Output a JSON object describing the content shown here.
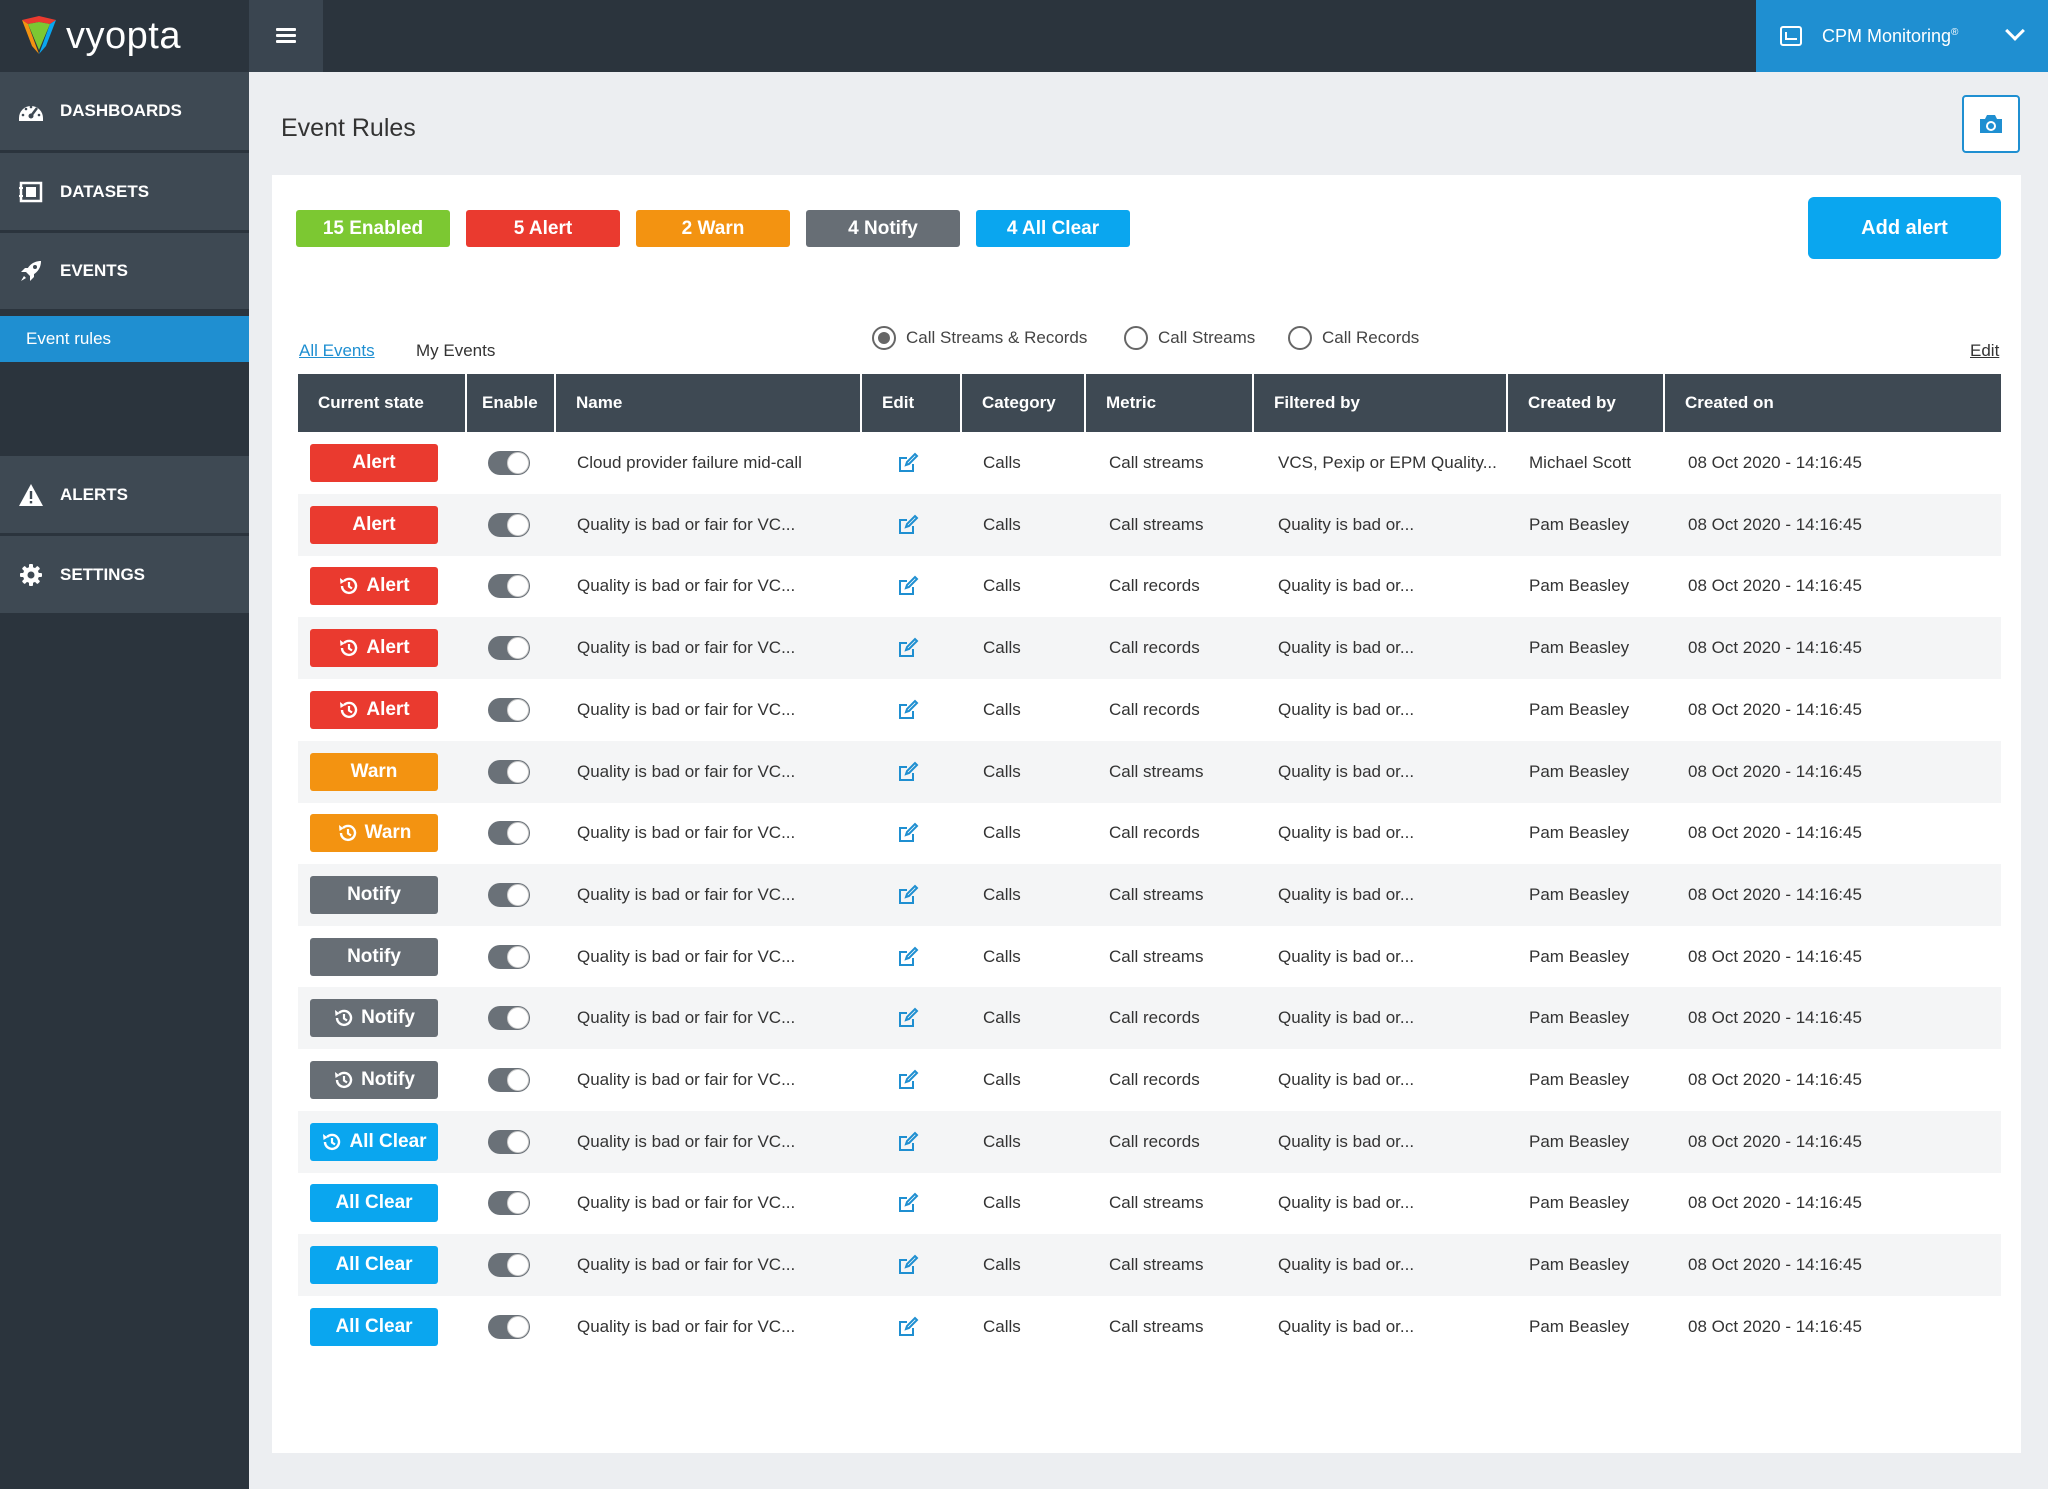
{
  "brand": {
    "name": "vyopta"
  },
  "header": {
    "product_label": "CPM Monitoring",
    "product_mark": "®"
  },
  "colors": {
    "alert": "#ea3a2f",
    "warn": "#f39311",
    "notify": "#676e75",
    "all_clear": "#0aa6ef",
    "enabled": "#7cc832",
    "accent": "#1f8fd1"
  },
  "sidebar": {
    "items": [
      {
        "label": "DASHBOARDS",
        "icon": "gauge-icon"
      },
      {
        "label": "DATASETS",
        "icon": "dataset-icon"
      },
      {
        "label": "EVENTS",
        "icon": "rocket-icon"
      },
      {
        "label": "ALERTS",
        "icon": "warning-icon"
      },
      {
        "label": "SETTINGS",
        "icon": "gear-icon"
      }
    ],
    "sub_item": "Event rules"
  },
  "page": {
    "title": "Event Rules"
  },
  "summary": {
    "enabled": "15 Enabled",
    "alert": "5 Alert",
    "warn": "2 Warn",
    "notify": "4 Notify",
    "all_clear": "4 All Clear"
  },
  "actions": {
    "add_alert": "Add alert",
    "edit": "Edit"
  },
  "tabs": {
    "all": "All Events",
    "my": "My Events"
  },
  "filters": {
    "options": [
      "Call Streams & Records",
      "Call Streams",
      "Call Records"
    ],
    "selected": "Call Streams & Records"
  },
  "table": {
    "headers": [
      "Current state",
      "Enable",
      "Name",
      "Edit",
      "Category",
      "Metric",
      "Filtered by",
      "Created by",
      "Created on"
    ],
    "rows": [
      {
        "state": "Alert",
        "history": false,
        "enabled": true,
        "name": "Cloud provider failure mid-call",
        "category": "Calls",
        "metric": "Call streams",
        "filtered_by": "VCS, Pexip or EPM Quality...",
        "created_by": "Michael Scott",
        "created_on": "08 Oct 2020 - 14:16:45"
      },
      {
        "state": "Alert",
        "history": false,
        "enabled": true,
        "name": "Quality is bad or fair for VC...",
        "category": "Calls",
        "metric": "Call streams",
        "filtered_by": "Quality is bad or...",
        "created_by": "Pam Beasley",
        "created_on": "08 Oct 2020 - 14:16:45"
      },
      {
        "state": "Alert",
        "history": true,
        "enabled": true,
        "name": "Quality is bad or fair for VC...",
        "category": "Calls",
        "metric": "Call records",
        "filtered_by": "Quality is bad or...",
        "created_by": "Pam Beasley",
        "created_on": "08 Oct 2020 - 14:16:45"
      },
      {
        "state": "Alert",
        "history": true,
        "enabled": true,
        "name": "Quality is bad or fair for VC...",
        "category": "Calls",
        "metric": "Call records",
        "filtered_by": "Quality is bad or...",
        "created_by": "Pam Beasley",
        "created_on": "08 Oct 2020 - 14:16:45"
      },
      {
        "state": "Alert",
        "history": true,
        "enabled": true,
        "name": "Quality is bad or fair for VC...",
        "category": "Calls",
        "metric": "Call records",
        "filtered_by": "Quality is bad or...",
        "created_by": "Pam Beasley",
        "created_on": "08 Oct 2020 - 14:16:45"
      },
      {
        "state": "Warn",
        "history": false,
        "enabled": true,
        "name": "Quality is bad or fair for VC...",
        "category": "Calls",
        "metric": "Call streams",
        "filtered_by": "Quality is bad or...",
        "created_by": "Pam Beasley",
        "created_on": "08 Oct 2020 - 14:16:45"
      },
      {
        "state": "Warn",
        "history": true,
        "enabled": true,
        "name": "Quality is bad or fair for VC...",
        "category": "Calls",
        "metric": "Call records",
        "filtered_by": "Quality is bad or...",
        "created_by": "Pam Beasley",
        "created_on": "08 Oct 2020 - 14:16:45"
      },
      {
        "state": "Notify",
        "history": false,
        "enabled": true,
        "name": "Quality is bad or fair for VC...",
        "category": "Calls",
        "metric": "Call streams",
        "filtered_by": "Quality is bad or...",
        "created_by": "Pam Beasley",
        "created_on": "08 Oct 2020 - 14:16:45"
      },
      {
        "state": "Notify",
        "history": false,
        "enabled": true,
        "name": "Quality is bad or fair for VC...",
        "category": "Calls",
        "metric": "Call streams",
        "filtered_by": "Quality is bad or...",
        "created_by": "Pam Beasley",
        "created_on": "08 Oct 2020 - 14:16:45"
      },
      {
        "state": "Notify",
        "history": true,
        "enabled": true,
        "name": "Quality is bad or fair for VC...",
        "category": "Calls",
        "metric": "Call records",
        "filtered_by": "Quality is bad or...",
        "created_by": "Pam Beasley",
        "created_on": "08 Oct 2020 - 14:16:45"
      },
      {
        "state": "Notify",
        "history": true,
        "enabled": true,
        "name": "Quality is bad or fair for VC...",
        "category": "Calls",
        "metric": "Call records",
        "filtered_by": "Quality is bad or...",
        "created_by": "Pam Beasley",
        "created_on": "08 Oct 2020 - 14:16:45"
      },
      {
        "state": "All Clear",
        "history": true,
        "enabled": true,
        "name": "Quality is bad or fair for VC...",
        "category": "Calls",
        "metric": "Call records",
        "filtered_by": "Quality is bad or...",
        "created_by": "Pam Beasley",
        "created_on": "08 Oct 2020 - 14:16:45"
      },
      {
        "state": "All Clear",
        "history": false,
        "enabled": true,
        "name": "Quality is bad or fair for VC...",
        "category": "Calls",
        "metric": "Call streams",
        "filtered_by": "Quality is bad or...",
        "created_by": "Pam Beasley",
        "created_on": "08 Oct 2020 - 14:16:45"
      },
      {
        "state": "All Clear",
        "history": false,
        "enabled": true,
        "name": "Quality is bad or fair for VC...",
        "category": "Calls",
        "metric": "Call streams",
        "filtered_by": "Quality is bad or...",
        "created_by": "Pam Beasley",
        "created_on": "08 Oct 2020 - 14:16:45"
      },
      {
        "state": "All Clear",
        "history": false,
        "enabled": true,
        "name": "Quality is bad or fair for VC...",
        "category": "Calls",
        "metric": "Call streams",
        "filtered_by": "Quality is bad or...",
        "created_by": "Pam Beasley",
        "created_on": "08 Oct 2020 - 14:16:45"
      }
    ]
  }
}
